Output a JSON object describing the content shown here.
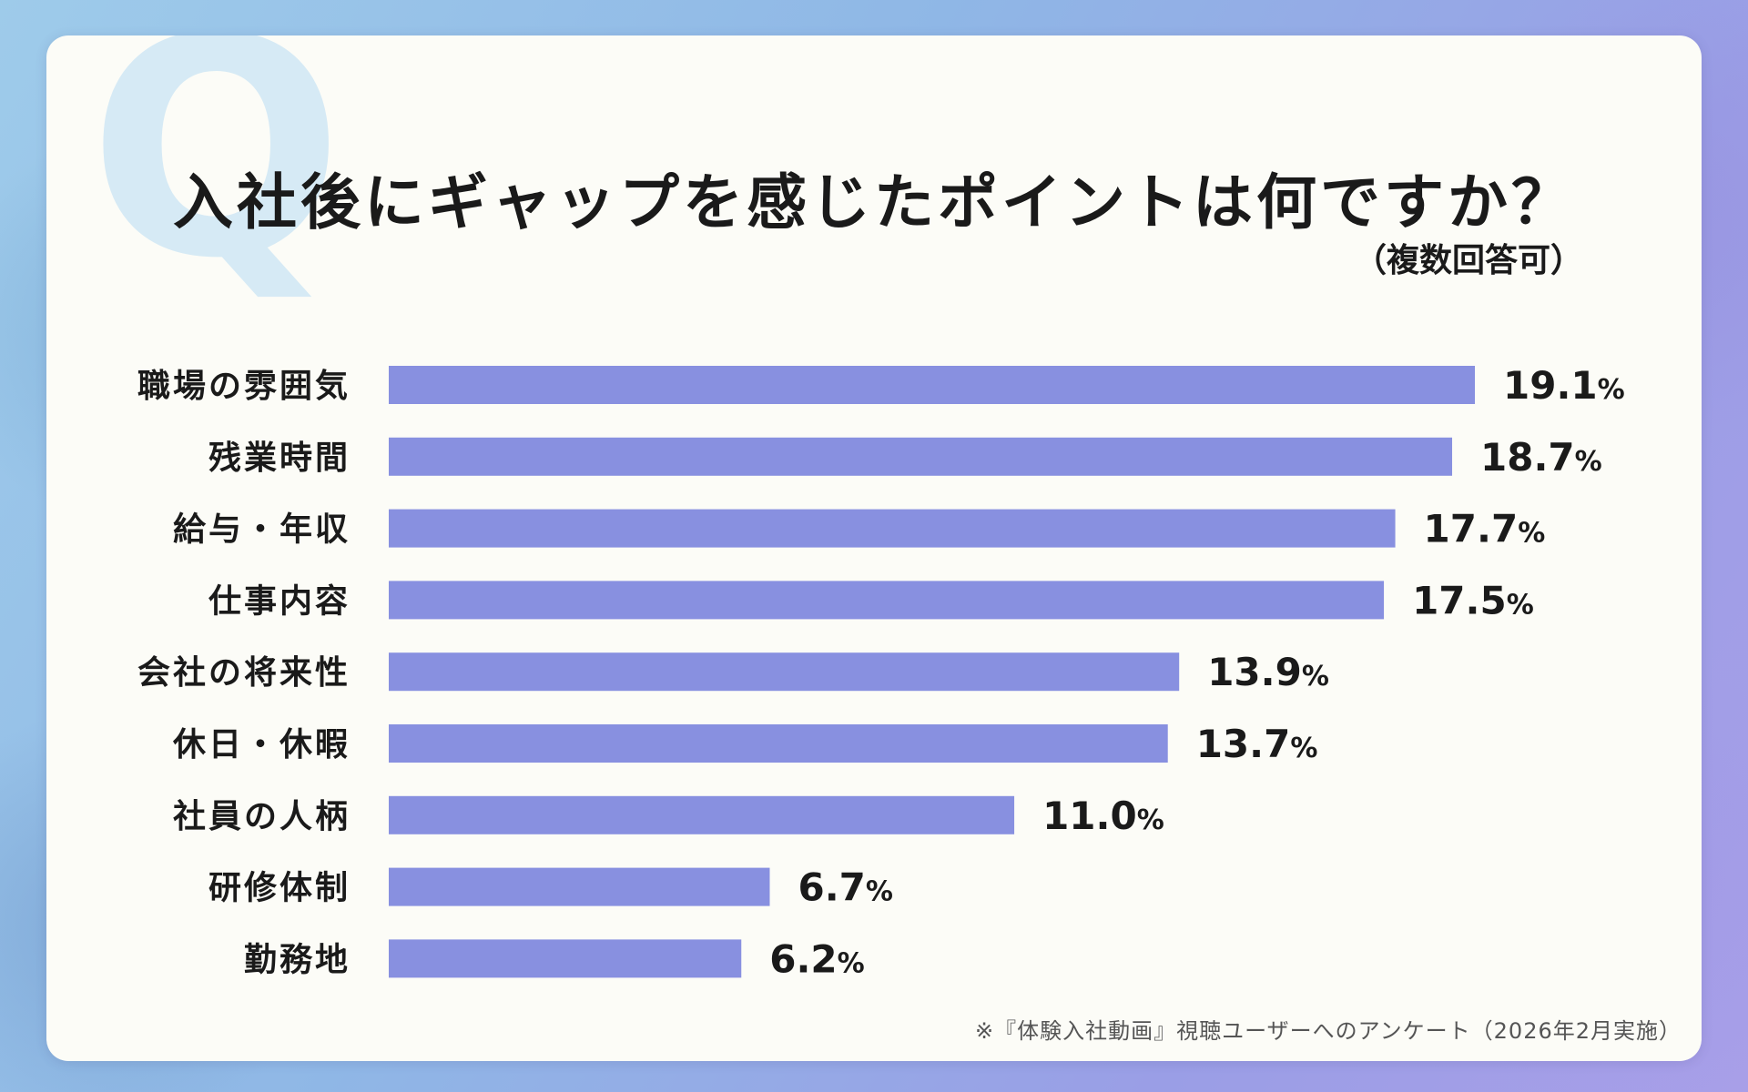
{
  "colors": {
    "bar": "#8890e0",
    "text": "#1a1a1a",
    "q_mark": "#d6eaf5"
  },
  "q_mark": "Q",
  "title": "入社後にギャップを感じたポイントは何ですか？",
  "subtitle": "（複数回答可）",
  "footnote": "※『体験入社動画』視聴ユーザーへのアンケート（2026年2月実施）",
  "chart_data": {
    "type": "bar",
    "orientation": "horizontal",
    "title": "入社後にギャップを感じたポイントは何ですか？",
    "subtitle": "（複数回答可）",
    "categories": [
      "職場の雰囲気",
      "残業時間",
      "給与・年収",
      "仕事内容",
      "会社の将来性",
      "休日・休暇",
      "社員の人柄",
      "研修体制",
      "勤務地"
    ],
    "values": [
      19.1,
      18.7,
      17.7,
      17.5,
      13.9,
      13.7,
      11.0,
      6.7,
      6.2
    ],
    "value_unit": "%",
    "xlim": [
      0,
      20
    ],
    "grid": false,
    "legend": "none"
  }
}
